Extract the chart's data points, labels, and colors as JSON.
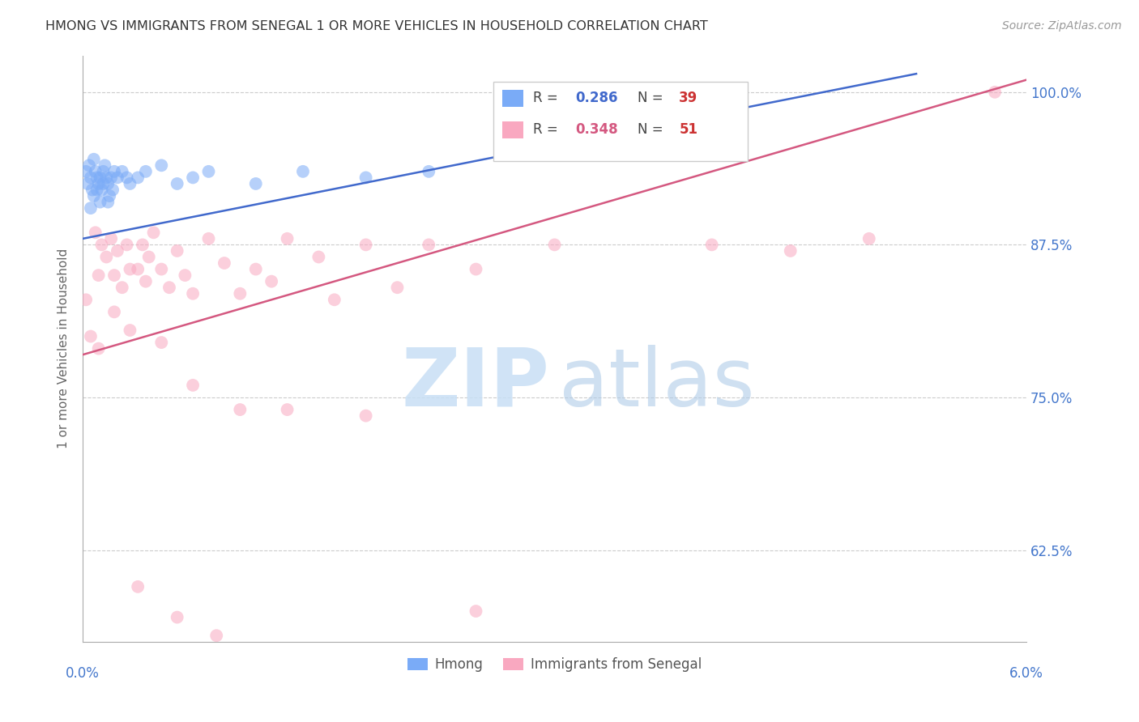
{
  "title": "HMONG VS IMMIGRANTS FROM SENEGAL 1 OR MORE VEHICLES IN HOUSEHOLD CORRELATION CHART",
  "source": "Source: ZipAtlas.com",
  "ylabel": "1 or more Vehicles in Household",
  "ytick_vals": [
    62.5,
    75.0,
    87.5,
    100.0
  ],
  "ytick_labels": [
    "62.5%",
    "75.0%",
    "87.5%",
    "100.0%"
  ],
  "xmin": 0.0,
  "xmax": 6.0,
  "ymin": 55.0,
  "ymax": 103.0,
  "legend_r1": "0.286",
  "legend_n1": "39",
  "legend_r2": "0.348",
  "legend_n2": "51",
  "legend_label1": "Hmong",
  "legend_label2": "Immigrants from Senegal",
  "blue_color": "#7aabf7",
  "pink_color": "#f9a8c0",
  "blue_line_color": "#4169cc",
  "pink_line_color": "#d45880",
  "blue_line_x": [
    0.0,
    5.3
  ],
  "blue_line_y": [
    88.0,
    101.5
  ],
  "pink_line_x": [
    0.0,
    6.0
  ],
  "pink_line_y": [
    78.5,
    101.0
  ],
  "hmong_x": [
    0.02,
    0.03,
    0.04,
    0.05,
    0.06,
    0.07,
    0.08,
    0.09,
    0.1,
    0.11,
    0.12,
    0.13,
    0.14,
    0.15,
    0.16,
    0.17,
    0.18,
    0.2,
    0.22,
    0.25,
    0.28,
    0.3,
    0.35,
    0.4,
    0.5,
    0.6,
    0.7,
    0.8,
    1.1,
    1.4,
    1.8,
    2.2,
    0.05,
    0.07,
    0.09,
    0.11,
    0.13,
    0.16,
    0.19
  ],
  "hmong_y": [
    93.5,
    92.5,
    94.0,
    93.0,
    92.0,
    94.5,
    93.5,
    93.0,
    92.5,
    93.0,
    92.0,
    93.5,
    94.0,
    93.0,
    92.5,
    91.5,
    93.0,
    93.5,
    93.0,
    93.5,
    93.0,
    92.5,
    93.0,
    93.5,
    94.0,
    92.5,
    93.0,
    93.5,
    92.5,
    93.5,
    93.0,
    93.5,
    90.5,
    91.5,
    92.0,
    91.0,
    92.5,
    91.0,
    92.0
  ],
  "senegal_x": [
    0.02,
    0.05,
    0.08,
    0.1,
    0.12,
    0.15,
    0.18,
    0.2,
    0.22,
    0.25,
    0.28,
    0.3,
    0.35,
    0.38,
    0.4,
    0.42,
    0.45,
    0.5,
    0.55,
    0.6,
    0.65,
    0.7,
    0.8,
    0.9,
    1.0,
    1.1,
    1.2,
    1.3,
    1.5,
    1.6,
    1.8,
    2.0,
    2.2,
    2.5,
    3.0,
    4.0,
    4.5,
    5.0,
    5.8,
    0.1,
    0.2,
    0.3,
    0.5,
    0.7,
    1.0,
    1.3,
    1.8,
    2.5,
    0.35,
    0.6,
    0.85
  ],
  "senegal_y": [
    83.0,
    80.0,
    88.5,
    85.0,
    87.5,
    86.5,
    88.0,
    85.0,
    87.0,
    84.0,
    87.5,
    85.5,
    85.5,
    87.5,
    84.5,
    86.5,
    88.5,
    85.5,
    84.0,
    87.0,
    85.0,
    83.5,
    88.0,
    86.0,
    83.5,
    85.5,
    84.5,
    88.0,
    86.5,
    83.0,
    87.5,
    84.0,
    87.5,
    85.5,
    87.5,
    87.5,
    87.0,
    88.0,
    100.0,
    79.0,
    82.0,
    80.5,
    79.5,
    76.0,
    74.0,
    74.0,
    73.5,
    57.5,
    59.5,
    57.0,
    55.5
  ],
  "watermark_zip_color": "#c8dff5",
  "watermark_atlas_color": "#b0cce8",
  "title_color": "#333333",
  "source_color": "#999999",
  "axis_color": "#4477cc",
  "grid_color": "#cccccc",
  "ylabel_color": "#666666"
}
